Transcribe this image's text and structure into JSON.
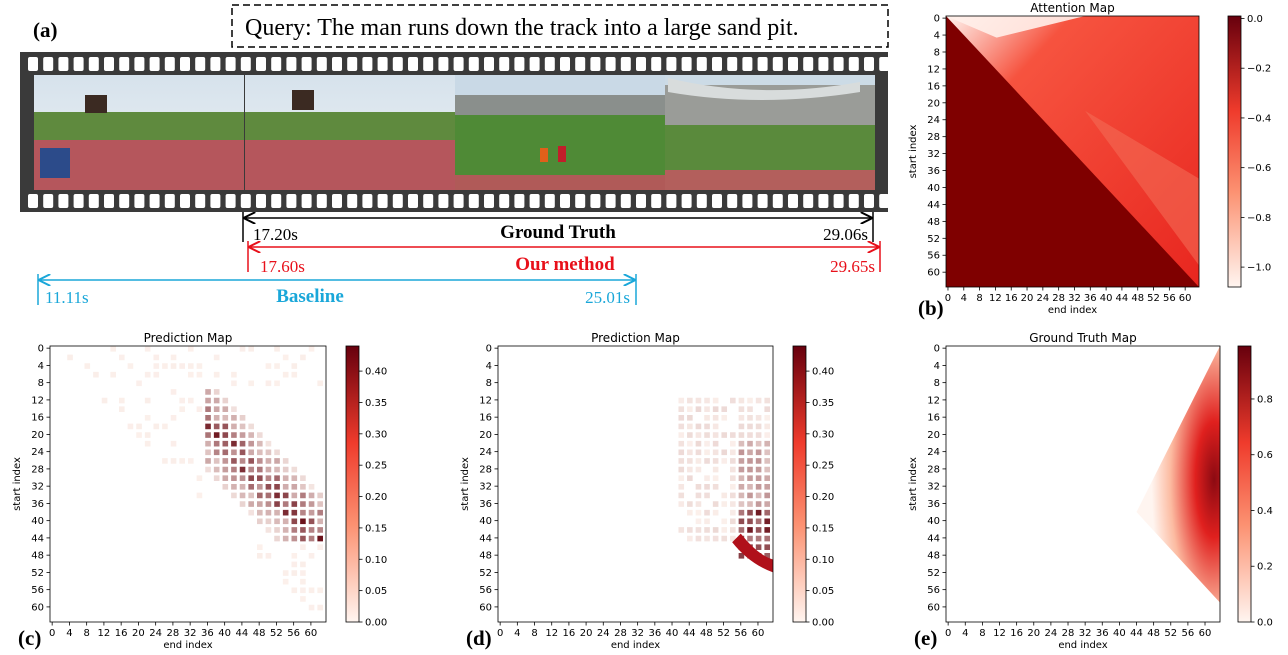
{
  "panel_a": {
    "label": "(a)",
    "query": "Query: The man runs down the track into a large sand pit.",
    "ground_truth": {
      "name": "Ground Truth",
      "start": "17.20s",
      "end": "29.06s"
    },
    "our_method": {
      "name": "Our method",
      "start": "17.60s",
      "end": "29.65s"
    },
    "baseline": {
      "name": "Baseline",
      "start": "11.11s",
      "end": "25.01s"
    }
  },
  "panels": [
    {
      "label": "(b)",
      "title": "Attention Map",
      "x_label": "end index",
      "y_label": "start index",
      "xticks": [
        0,
        4,
        8,
        12,
        16,
        20,
        24,
        28,
        32,
        36,
        40,
        44,
        48,
        52,
        56,
        60
      ],
      "yticks": [
        0,
        4,
        8,
        12,
        16,
        20,
        24,
        28,
        32,
        36,
        40,
        44,
        48,
        52,
        56,
        60
      ],
      "clim": [
        -1.08,
        0.01
      ],
      "colorbar_ticks": [
        {
          "value": 0,
          "label": "0.0"
        },
        {
          "value": -0.2,
          "label": "−0.2"
        },
        {
          "value": -0.4,
          "label": "−0.4"
        },
        {
          "value": -0.6,
          "label": "−0.6"
        },
        {
          "value": -0.8,
          "label": "−0.8"
        },
        {
          "value": -1,
          "label": "−1.0"
        }
      ]
    },
    {
      "label": "(c)",
      "title": "Prediction Map",
      "x_label": "end index",
      "y_label": "start index",
      "xticks": [
        0,
        4,
        8,
        12,
        16,
        20,
        24,
        28,
        32,
        36,
        40,
        44,
        48,
        52,
        56,
        60
      ],
      "yticks": [
        0,
        4,
        8,
        12,
        16,
        20,
        24,
        28,
        32,
        36,
        40,
        44,
        48,
        52,
        56,
        60
      ],
      "clim": [
        0,
        0.44
      ],
      "colorbar_ticks": [
        {
          "value": 0,
          "label": "0.00"
        },
        0.05,
        {
          "value": 0.1,
          "label": "0.10"
        },
        0.15,
        {
          "value": 0.2,
          "label": "0.20"
        },
        0.25,
        {
          "value": 0.3,
          "label": "0.30"
        },
        0.35,
        {
          "value": 0.4,
          "label": "0.40"
        }
      ]
    },
    {
      "label": "(d)",
      "title": "Prediction Map",
      "x_label": "end index",
      "y_label": "start index",
      "xticks": [
        0,
        4,
        8,
        12,
        16,
        20,
        24,
        28,
        32,
        36,
        40,
        44,
        48,
        52,
        56,
        60
      ],
      "yticks": [
        0,
        4,
        8,
        12,
        16,
        20,
        24,
        28,
        32,
        36,
        40,
        44,
        48,
        52,
        56,
        60
      ],
      "clim": [
        0,
        0.44
      ],
      "colorbar_ticks": [
        {
          "value": 0,
          "label": "0.00"
        },
        0.05,
        {
          "value": 0.1,
          "label": "0.10"
        },
        0.15,
        {
          "value": 0.2,
          "label": "0.20"
        },
        0.25,
        {
          "value": 0.3,
          "label": "0.30"
        },
        0.35,
        {
          "value": 0.4,
          "label": "0.40"
        }
      ]
    },
    {
      "label": "(e)",
      "title": "Ground Truth Map",
      "x_label": "end index",
      "y_label": "start index",
      "xticks": [
        0,
        4,
        8,
        12,
        16,
        20,
        24,
        28,
        32,
        36,
        40,
        44,
        48,
        52,
        56,
        60
      ],
      "yticks": [
        0,
        4,
        8,
        12,
        16,
        20,
        24,
        28,
        32,
        36,
        40,
        44,
        48,
        52,
        56,
        60
      ],
      "clim": [
        0,
        0.99
      ],
      "colorbar_ticks": [
        {
          "value": 0,
          "label": "0.0"
        },
        0.2,
        0.4,
        0.6,
        0.8
      ]
    }
  ]
}
